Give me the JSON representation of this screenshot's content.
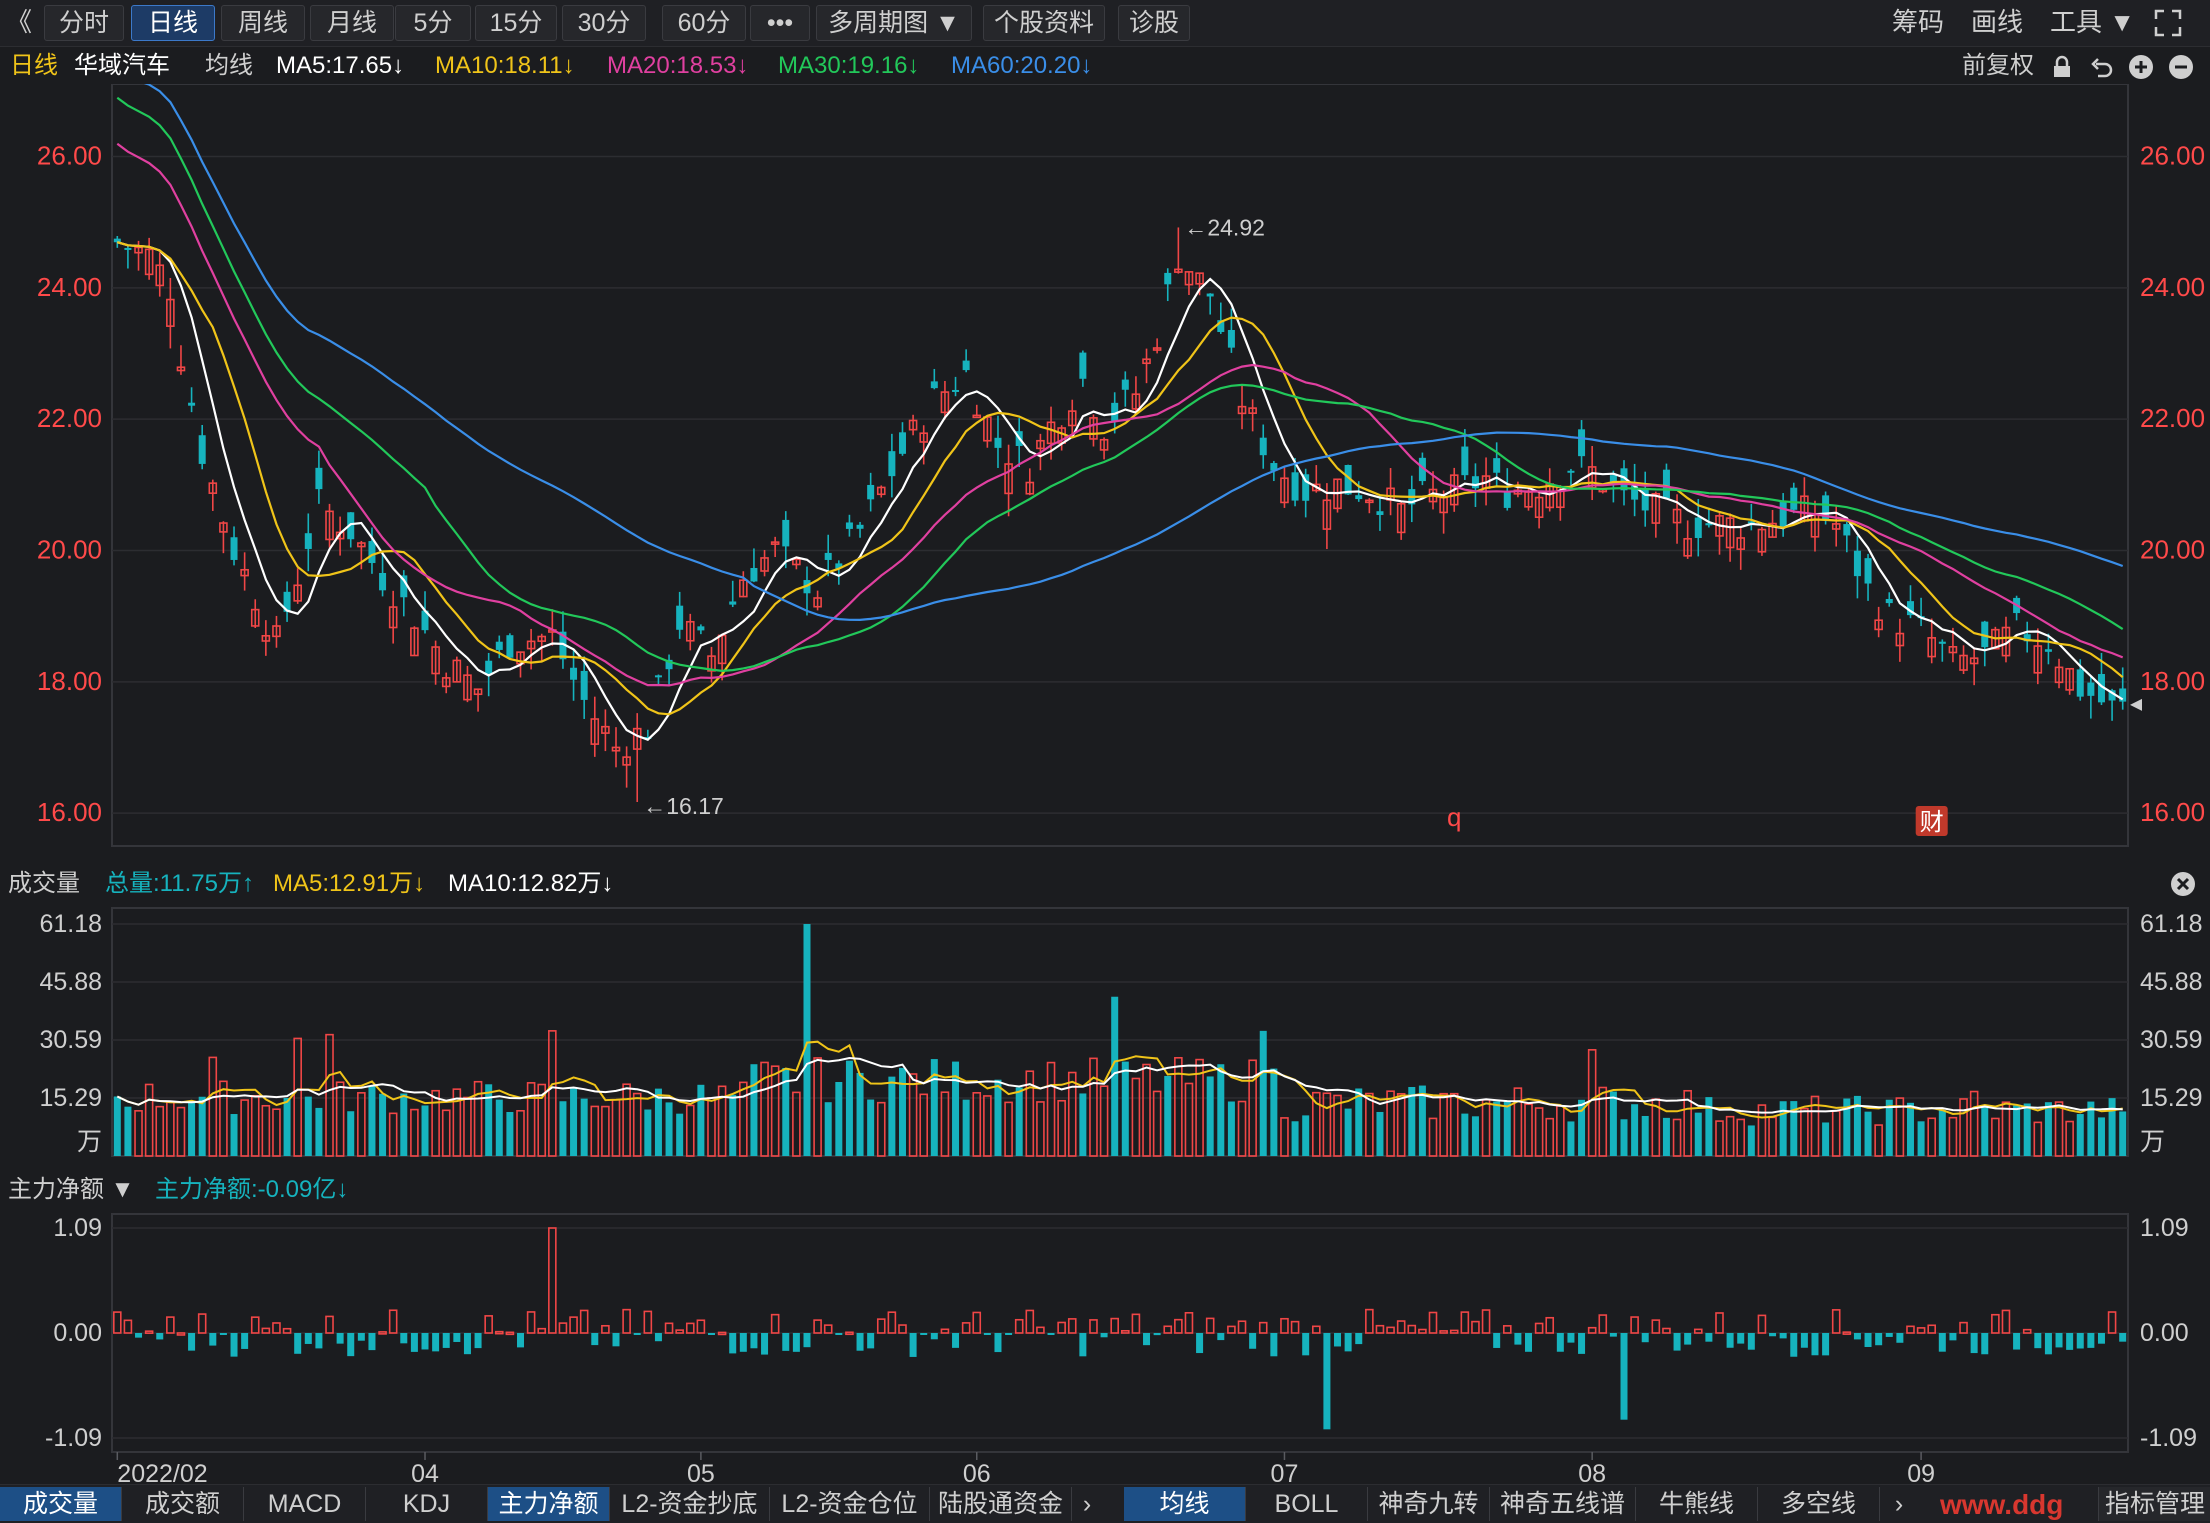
{
  "toolbar": {
    "back_glyph": "《",
    "buttons": [
      "分时",
      "日线",
      "周线",
      "月线",
      "5分",
      "15分",
      "30分",
      "60分",
      "•••",
      "多周期图 ▼",
      "个股资料",
      "诊股"
    ],
    "active": "日线",
    "right": [
      "筹码",
      "画线",
      "工具 ▼"
    ],
    "fullscreen_icon": "fullscreen-icon"
  },
  "header": {
    "period": "日线",
    "stock_name": "华域汽车",
    "ma_label": "均线",
    "ma5": "MA5:17.65↓",
    "ma10": "MA10:18.11↓",
    "ma20": "MA20:18.53↓",
    "ma30": "MA30:19.16↓",
    "ma60": "MA60:20.20↓",
    "fuquan": "前复权"
  },
  "colors": {
    "up": "#f04646",
    "down": "#16b3be",
    "ma5": "#ffffff",
    "ma10": "#f0c419",
    "ma20": "#e040a0",
    "ma30": "#22c85a",
    "ma60": "#3a8ee8",
    "price_axis": "#ff4a4a",
    "grid": "#2c2d31",
    "bg": "#1b1c1f"
  },
  "volume_panel": {
    "title": "成交量",
    "total": "总量:11.75万↑",
    "ma5": "MA5:12.91万↓",
    "ma10": "MA10:12.82万↓",
    "unit": "万"
  },
  "flow_panel": {
    "title": "主力净额 ▼",
    "value": "主力净额:-0.09亿↓"
  },
  "markers": {
    "high": "←24.92",
    "low": "←16.17",
    "q_label": "q",
    "cai_label": "财"
  },
  "chart_data": [
    {
      "type": "candlestick",
      "title": "华域汽车 日线",
      "x_labels": [
        "2022/02",
        "04",
        "05",
        "06",
        "07",
        "08",
        "09"
      ],
      "x_label_index": [
        0,
        29,
        55,
        81,
        110,
        139,
        170
      ],
      "yticks": [
        16.0,
        18.0,
        20.0,
        22.0,
        24.0,
        26.0
      ],
      "ylim": [
        15.5,
        26.8
      ],
      "anchors": [
        [
          0,
          24.7
        ],
        [
          3,
          24.5
        ],
        [
          5,
          24.0
        ],
        [
          6,
          23.0
        ],
        [
          8,
          21.5
        ],
        [
          11,
          20.0
        ],
        [
          15,
          18.6
        ],
        [
          17,
          19.6
        ],
        [
          19,
          20.7
        ],
        [
          22,
          20.3
        ],
        [
          25,
          19.6
        ],
        [
          28,
          19.0
        ],
        [
          31,
          18.3
        ],
        [
          34,
          17.9
        ],
        [
          37,
          18.6
        ],
        [
          41,
          18.7
        ],
        [
          44,
          17.7
        ],
        [
          47,
          17.0
        ],
        [
          50,
          17.3
        ],
        [
          53,
          18.9
        ],
        [
          56,
          18.4
        ],
        [
          59,
          19.6
        ],
        [
          62,
          20.0
        ],
        [
          66,
          19.4
        ],
        [
          70,
          20.3
        ],
        [
          74,
          21.5
        ],
        [
          77,
          22.3
        ],
        [
          80,
          22.7
        ],
        [
          83,
          21.6
        ],
        [
          86,
          21.3
        ],
        [
          88,
          21.9
        ],
        [
          91,
          22.6
        ],
        [
          93,
          21.9
        ],
        [
          96,
          22.4
        ],
        [
          98,
          23.3
        ],
        [
          100,
          24.5
        ],
        [
          103,
          23.9
        ],
        [
          106,
          22.3
        ],
        [
          109,
          21.3
        ],
        [
          112,
          20.9
        ],
        [
          115,
          21.0
        ],
        [
          118,
          20.9
        ],
        [
          121,
          20.6
        ],
        [
          123,
          20.8
        ],
        [
          126,
          20.9
        ],
        [
          129,
          21.1
        ],
        [
          131,
          20.9
        ],
        [
          134,
          21.0
        ],
        [
          137,
          21.3
        ],
        [
          139,
          21.2
        ],
        [
          142,
          20.8
        ],
        [
          145,
          20.6
        ],
        [
          148,
          20.4
        ],
        [
          151,
          20.4
        ],
        [
          154,
          20.4
        ],
        [
          157,
          20.5
        ],
        [
          160,
          20.6
        ],
        [
          162,
          20.4
        ],
        [
          165,
          19.4
        ],
        [
          167,
          19.0
        ],
        [
          170,
          18.8
        ],
        [
          173,
          18.3
        ],
        [
          176,
          18.4
        ],
        [
          179,
          18.8
        ],
        [
          182,
          18.6
        ],
        [
          185,
          17.9
        ],
        [
          188,
          17.6
        ],
        [
          189,
          17.6
        ]
      ],
      "high_label": 24.92,
      "low_label": 16.17
    },
    {
      "type": "bar",
      "title": "成交量",
      "yticks": [
        15.29,
        30.59,
        45.88,
        61.18
      ],
      "unit": "万",
      "ylim": [
        0,
        61.18
      ],
      "spikes": [
        [
          9,
          26
        ],
        [
          17,
          31
        ],
        [
          20,
          32
        ],
        [
          41,
          33
        ],
        [
          65,
          61.18
        ],
        [
          94,
          42
        ],
        [
          108,
          33
        ],
        [
          139,
          28
        ],
        [
          175,
          17
        ],
        [
          189,
          11.75
        ]
      ]
    },
    {
      "type": "bar",
      "title": "主力净额",
      "yticks": [
        1.09,
        0.0,
        -1.09
      ],
      "ylim": [
        -1.09,
        1.09
      ],
      "last": -0.09
    }
  ],
  "tabs_left": [
    "成交量",
    "成交额",
    "MACD",
    "KDJ",
    "主力净额",
    "L2-资金抄底",
    "L2-资金仓位",
    "陆股通资金"
  ],
  "tabs_left_active": [
    "成交量",
    "主力净额"
  ],
  "tabs_right": [
    "均线",
    "BOLL",
    "神奇九转",
    "神奇五线谱",
    "牛熊线",
    "多空线"
  ],
  "tabs_right_active": "均线",
  "tab_more": "指标管理",
  "watermark": "www.ddg"
}
